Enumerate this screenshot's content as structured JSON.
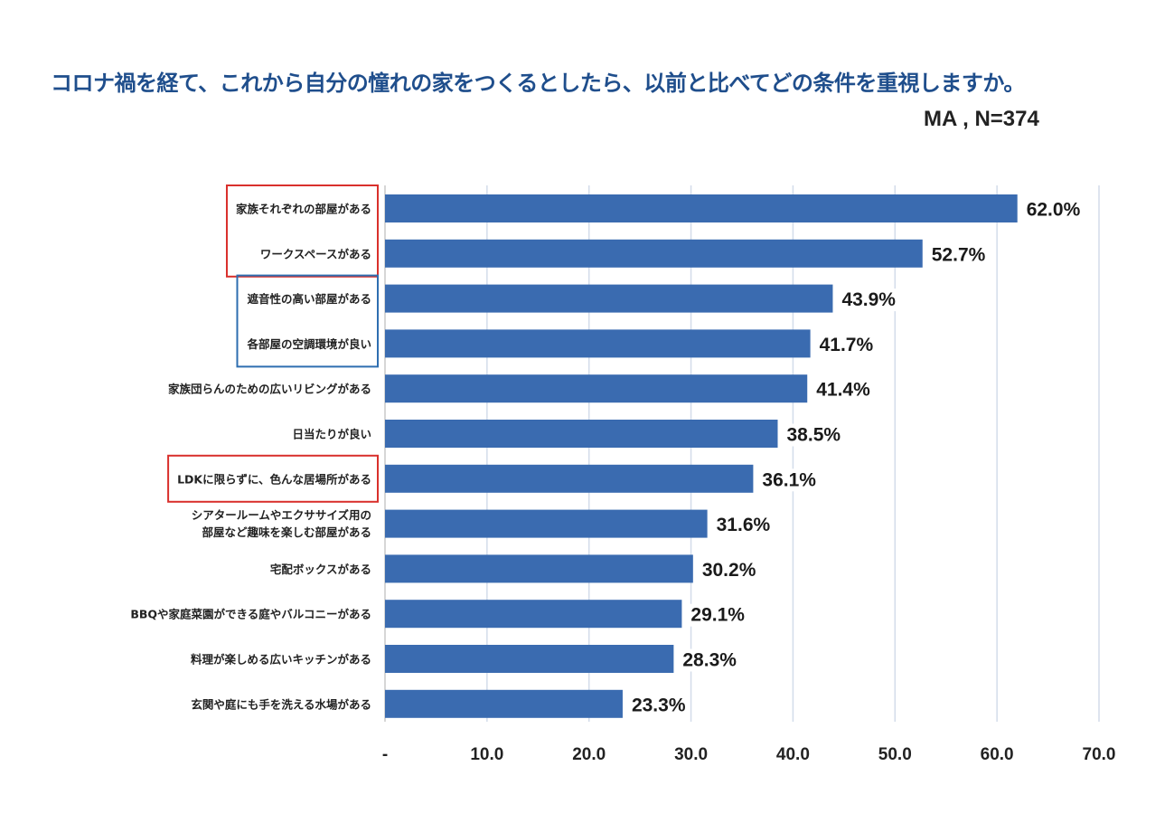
{
  "header": {
    "title": "コロナ禍を経て、これから自分の憧れの家をつくるとしたら、以前と比べてどの条件を重視しますか。",
    "subtitle": "MA , N=374"
  },
  "colors": {
    "bar": "#3a6bb0",
    "grid": "#d3dcea",
    "title": "#1f4e8c",
    "red_box": "#d9302c",
    "blue_box": "#2e6eb0"
  },
  "chart_data": {
    "type": "bar",
    "orientation": "horizontal",
    "title": "コロナ禍を経て、これから自分の憧れの家をつくるとしたら、以前と比べてどの条件を重視しますか。",
    "note": "MA , N=374",
    "categories": [
      [
        "家族それぞれの部屋がある"
      ],
      [
        "ワークスペースがある"
      ],
      [
        "遮音性の高い部屋がある"
      ],
      [
        "各部屋の空調環境が良い"
      ],
      [
        "家族団らんのための広いリビングがある"
      ],
      [
        "日当たりが良い"
      ],
      [
        "LDKに限らずに、色んな居場所がある"
      ],
      [
        "シアタールームやエクササイズ用の",
        "部屋など趣味を楽しむ部屋がある"
      ],
      [
        "宅配ボックスがある"
      ],
      [
        "BBQや家庭菜園ができる庭やバルコニーがある"
      ],
      [
        "料理が楽しめる広いキッチンがある"
      ],
      [
        "玄関や庭にも手を洗える水場がある"
      ]
    ],
    "values": [
      62.0,
      52.7,
      43.9,
      41.7,
      41.4,
      38.5,
      36.1,
      31.6,
      30.2,
      29.1,
      28.3,
      23.3
    ],
    "value_labels": [
      "62.0%",
      "52.7%",
      "43.9%",
      "41.7%",
      "41.4%",
      "38.5%",
      "36.1%",
      "31.6%",
      "30.2%",
      "29.1%",
      "28.3%",
      "23.3%"
    ],
    "xlim": [
      0,
      70
    ],
    "x_ticks": [
      0,
      10,
      20,
      30,
      40,
      50,
      60,
      70
    ],
    "x_tick_labels": [
      "-",
      "10.0",
      "20.0",
      "30.0",
      "40.0",
      "50.0",
      "60.0",
      "70.0"
    ],
    "grid": true,
    "highlight_groups": [
      {
        "color": "red",
        "categories": [
          0,
          1
        ]
      },
      {
        "color": "blue",
        "categories": [
          2,
          3
        ]
      },
      {
        "color": "red",
        "categories": [
          6
        ]
      }
    ]
  }
}
